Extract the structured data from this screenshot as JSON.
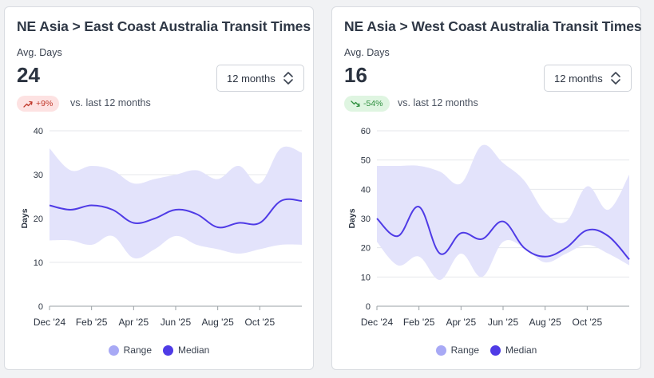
{
  "colors": {
    "range_fill": "#e3e3fb",
    "range_legend": "#a8a9f5",
    "median_line": "#4f3be6",
    "grid": "#e5e7eb",
    "axis": "#9aa0a6"
  },
  "cards": [
    {
      "title": "NE Asia > East Coast Australia Transit Times",
      "metric_label": "Avg. Days",
      "metric_value": "24",
      "select_value": "12 months",
      "select_icon": "chevron-up-down-icon",
      "badge_icon": "trend-up-icon",
      "badge_text": "+9%",
      "badge_trend": "up",
      "compare_text": "vs. last 12 months",
      "legend": [
        {
          "label": "Range"
        },
        {
          "label": "Median"
        }
      ]
    },
    {
      "title": "NE Asia > West Coast Australia Transit Times",
      "metric_label": "Avg. Days",
      "metric_value": "16",
      "select_value": "12 months",
      "select_icon": "chevron-up-down-icon",
      "badge_icon": "trend-down-icon",
      "badge_text": "-54%",
      "badge_trend": "down",
      "compare_text": "vs. last 12 months",
      "legend": [
        {
          "label": "Range"
        },
        {
          "label": "Median"
        }
      ]
    }
  ],
  "chart_data": [
    {
      "type": "area",
      "title": "",
      "xlabel": "",
      "ylabel": "Days",
      "ylim": [
        0,
        40
      ],
      "yticks": [
        0,
        10,
        20,
        30,
        40
      ],
      "x_ticks": [
        "Dec '24",
        "Feb '25",
        "Apr '25",
        "Jun '25",
        "Aug '25",
        "Oct '25"
      ],
      "x_tick_index": [
        0,
        2,
        4,
        6,
        8,
        10
      ],
      "x": [
        "Dec '24",
        "Jan '25",
        "Feb '25",
        "Mar '25",
        "Apr '25",
        "May '25",
        "Jun '25",
        "Jul '25",
        "Aug '25",
        "Sep '25",
        "Oct '25",
        "Nov '25",
        "Dec '25"
      ],
      "grid": true,
      "legend_position": "bottom",
      "series": [
        {
          "name": "Range",
          "type": "band",
          "low": [
            15,
            15,
            14,
            16,
            11,
            13,
            16,
            14,
            13,
            12,
            13,
            14,
            14
          ],
          "high": [
            36,
            31,
            32,
            31,
            28,
            29,
            30,
            31,
            29,
            32,
            28,
            36,
            35
          ]
        },
        {
          "name": "Median",
          "type": "line",
          "values": [
            23,
            22,
            23,
            22,
            19,
            20,
            22,
            21,
            18,
            19,
            19,
            24,
            24
          ]
        }
      ]
    },
    {
      "type": "area",
      "title": "",
      "xlabel": "",
      "ylabel": "Days",
      "ylim": [
        0,
        60
      ],
      "yticks": [
        0,
        10,
        20,
        30,
        40,
        50,
        60
      ],
      "x_ticks": [
        "Dec '24",
        "Feb '25",
        "Apr '25",
        "Jun '25",
        "Aug '25",
        "Oct '25"
      ],
      "x_tick_index": [
        0,
        2,
        4,
        6,
        8,
        10
      ],
      "x": [
        "Dec '24",
        "Jan '25",
        "Feb '25",
        "Mar '25",
        "Apr '25",
        "May '25",
        "Jun '25",
        "Jul '25",
        "Aug '25",
        "Sep '25",
        "Oct '25",
        "Nov '25",
        "Dec '25"
      ],
      "grid": true,
      "legend_position": "bottom",
      "series": [
        {
          "name": "Range",
          "type": "band",
          "low": [
            22,
            14,
            17,
            9,
            18,
            10,
            22,
            20,
            15,
            18,
            21,
            18,
            14
          ],
          "high": [
            48,
            48,
            48,
            46,
            42,
            55,
            49,
            43,
            32,
            29,
            41,
            33,
            45
          ]
        },
        {
          "name": "Median",
          "type": "line",
          "values": [
            30,
            24,
            34,
            18,
            25,
            23,
            29,
            20,
            17,
            20,
            26,
            24,
            16
          ]
        }
      ]
    }
  ]
}
